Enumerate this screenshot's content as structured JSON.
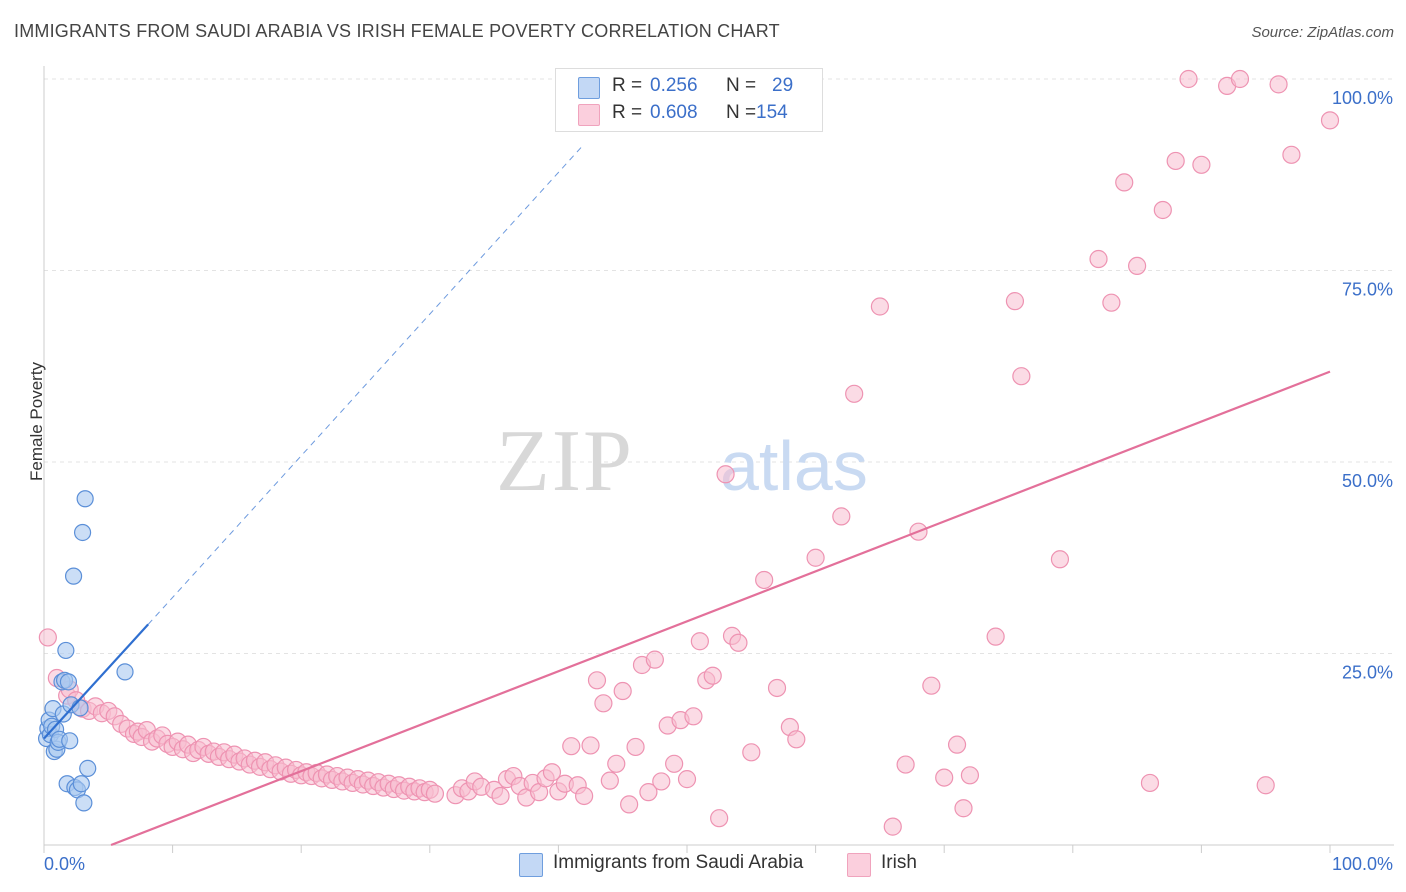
{
  "title": "IMMIGRANTS FROM SAUDI ARABIA VS IRISH FEMALE POVERTY CORRELATION CHART",
  "source": "Source: ZipAtlas.com",
  "watermark": {
    "zip": "ZIP",
    "atlas": "atlas"
  },
  "legend": [
    {
      "r_label": "R =",
      "r_value": "0.256",
      "n_label": "N =",
      "n_value": "29"
    },
    {
      "r_label": "R =",
      "r_value": "0.608",
      "n_label": "N =",
      "n_value": "154"
    }
  ],
  "colors": {
    "saudi_fill": "#a9c8f0",
    "saudi_stroke": "#5b8fd8",
    "saudi_line": "#2f6fd0",
    "irish_fill": "#f8bed0",
    "irish_stroke": "#ee93b2",
    "irish_line": "#e3709a",
    "axis_text": "#3b6fc9",
    "grid": "#e3e3e3"
  },
  "chart_data": {
    "type": "scatter",
    "title": "IMMIGRANTS FROM SAUDI ARABIA VS IRISH FEMALE POVERTY CORRELATION CHART",
    "xlabel": "",
    "ylabel": "Female Poverty",
    "xlim": [
      0,
      100
    ],
    "ylim": [
      0,
      100
    ],
    "x_tick_labels": [
      "0.0%",
      "100.0%"
    ],
    "y_ticks": [
      25,
      50,
      75,
      100
    ],
    "y_tick_labels": [
      "25.0%",
      "50.0%",
      "75.0%",
      "100.0%"
    ],
    "grid": true,
    "legend_position": "bottom",
    "series": [
      {
        "name": "Immigrants from Saudi Arabia",
        "r": 0.256,
        "n": 29,
        "points": [
          [
            0.2,
            13.9
          ],
          [
            0.3,
            15.2
          ],
          [
            0.4,
            16.3
          ],
          [
            0.5,
            14.4
          ],
          [
            0.6,
            15.5
          ],
          [
            0.7,
            17.8
          ],
          [
            0.8,
            12.2
          ],
          [
            0.9,
            15.1
          ],
          [
            1.0,
            12.5
          ],
          [
            1.1,
            13.4
          ],
          [
            1.2,
            13.8
          ],
          [
            1.4,
            21.3
          ],
          [
            1.5,
            17.1
          ],
          [
            1.6,
            21.5
          ],
          [
            1.7,
            25.4
          ],
          [
            1.8,
            8.0
          ],
          [
            1.9,
            21.3
          ],
          [
            2.1,
            18.3
          ],
          [
            2.3,
            35.1
          ],
          [
            2.4,
            7.5
          ],
          [
            2.6,
            7.2
          ],
          [
            2.8,
            17.9
          ],
          [
            2.9,
            8.0
          ],
          [
            3.0,
            40.8
          ],
          [
            3.1,
            5.5
          ],
          [
            3.2,
            45.2
          ],
          [
            3.4,
            10.0
          ],
          [
            6.3,
            22.6
          ],
          [
            2.0,
            13.6
          ]
        ],
        "trend_solid": {
          "x": [
            0,
            8.1
          ],
          "y": [
            13.9,
            28.8
          ]
        },
        "trend_dashed": {
          "x": [
            8.1,
            42.0
          ],
          "y": [
            28.8,
            91.5
          ]
        }
      },
      {
        "name": "Irish",
        "r": 0.608,
        "n": 154,
        "points": [
          [
            0.3,
            27.1
          ],
          [
            1.0,
            21.8
          ],
          [
            1.8,
            19.5
          ],
          [
            2.0,
            20.3
          ],
          [
            2.5,
            18.9
          ],
          [
            3.0,
            17.8
          ],
          [
            3.5,
            17.5
          ],
          [
            4.0,
            18.1
          ],
          [
            4.5,
            17.2
          ],
          [
            5.0,
            17.5
          ],
          [
            5.5,
            16.8
          ],
          [
            6.0,
            15.8
          ],
          [
            6.5,
            15.2
          ],
          [
            7.0,
            14.5
          ],
          [
            7.3,
            14.8
          ],
          [
            7.6,
            14.1
          ],
          [
            8.0,
            15.0
          ],
          [
            8.4,
            13.5
          ],
          [
            8.8,
            13.9
          ],
          [
            9.2,
            14.3
          ],
          [
            9.6,
            13.2
          ],
          [
            10.0,
            12.8
          ],
          [
            10.4,
            13.5
          ],
          [
            10.8,
            12.5
          ],
          [
            11.2,
            13.1
          ],
          [
            11.6,
            12.0
          ],
          [
            12.0,
            12.4
          ],
          [
            12.4,
            12.8
          ],
          [
            12.8,
            11.9
          ],
          [
            13.2,
            12.2
          ],
          [
            13.6,
            11.5
          ],
          [
            14.0,
            12.1
          ],
          [
            14.4,
            11.2
          ],
          [
            14.8,
            11.8
          ],
          [
            15.2,
            10.9
          ],
          [
            15.6,
            11.3
          ],
          [
            16.0,
            10.5
          ],
          [
            16.4,
            11.0
          ],
          [
            16.8,
            10.2
          ],
          [
            17.2,
            10.8
          ],
          [
            17.6,
            9.9
          ],
          [
            18.0,
            10.4
          ],
          [
            18.4,
            9.6
          ],
          [
            18.8,
            10.1
          ],
          [
            19.2,
            9.3
          ],
          [
            19.6,
            9.8
          ],
          [
            20.0,
            9.1
          ],
          [
            20.4,
            9.5
          ],
          [
            20.8,
            9.0
          ],
          [
            21.2,
            9.4
          ],
          [
            21.6,
            8.7
          ],
          [
            22.0,
            9.2
          ],
          [
            22.4,
            8.5
          ],
          [
            22.8,
            9.0
          ],
          [
            23.2,
            8.3
          ],
          [
            23.6,
            8.8
          ],
          [
            24.0,
            8.1
          ],
          [
            24.4,
            8.6
          ],
          [
            24.8,
            7.9
          ],
          [
            25.2,
            8.4
          ],
          [
            25.6,
            7.7
          ],
          [
            26.0,
            8.2
          ],
          [
            26.4,
            7.5
          ],
          [
            26.8,
            8.0
          ],
          [
            27.2,
            7.3
          ],
          [
            27.6,
            7.8
          ],
          [
            28.0,
            7.1
          ],
          [
            28.4,
            7.6
          ],
          [
            28.8,
            7.0
          ],
          [
            29.2,
            7.4
          ],
          [
            29.6,
            6.9
          ],
          [
            30.0,
            7.2
          ],
          [
            30.4,
            6.7
          ],
          [
            32.0,
            6.5
          ],
          [
            32.5,
            7.4
          ],
          [
            33.0,
            7.0
          ],
          [
            33.5,
            8.3
          ],
          [
            34.0,
            7.6
          ],
          [
            35.0,
            7.2
          ],
          [
            35.5,
            6.4
          ],
          [
            36.0,
            8.6
          ],
          [
            36.5,
            9.0
          ],
          [
            37.0,
            7.7
          ],
          [
            37.5,
            6.2
          ],
          [
            38.0,
            8.1
          ],
          [
            38.5,
            6.9
          ],
          [
            39.0,
            8.7
          ],
          [
            39.5,
            9.5
          ],
          [
            40.0,
            7.0
          ],
          [
            40.5,
            8.0
          ],
          [
            41.0,
            12.9
          ],
          [
            41.5,
            7.8
          ],
          [
            42.0,
            6.4
          ],
          [
            42.5,
            13.0
          ],
          [
            43.0,
            21.5
          ],
          [
            43.5,
            18.5
          ],
          [
            44.0,
            8.4
          ],
          [
            44.5,
            10.6
          ],
          [
            45.0,
            20.1
          ],
          [
            45.5,
            5.3
          ],
          [
            46.0,
            12.8
          ],
          [
            46.5,
            23.5
          ],
          [
            47.0,
            6.9
          ],
          [
            47.5,
            24.2
          ],
          [
            48.0,
            8.3
          ],
          [
            48.5,
            15.6
          ],
          [
            49.0,
            10.6
          ],
          [
            49.5,
            16.3
          ],
          [
            50.0,
            8.6
          ],
          [
            50.5,
            16.8
          ],
          [
            51.0,
            26.6
          ],
          [
            51.5,
            21.5
          ],
          [
            52.0,
            22.1
          ],
          [
            52.5,
            3.5
          ],
          [
            53.0,
            48.4
          ],
          [
            53.5,
            27.3
          ],
          [
            54.0,
            26.4
          ],
          [
            55.0,
            12.1
          ],
          [
            56.0,
            34.6
          ],
          [
            57.0,
            20.5
          ],
          [
            58.0,
            15.4
          ],
          [
            58.5,
            13.8
          ],
          [
            60.0,
            37.5
          ],
          [
            62.0,
            42.9
          ],
          [
            63.0,
            58.9
          ],
          [
            65.0,
            70.3
          ],
          [
            66.0,
            2.4
          ],
          [
            67.0,
            10.5
          ],
          [
            68.0,
            40.9
          ],
          [
            69.0,
            20.8
          ],
          [
            70.0,
            8.8
          ],
          [
            71.0,
            13.1
          ],
          [
            71.5,
            4.8
          ],
          [
            72.0,
            9.1
          ],
          [
            74.0,
            27.2
          ],
          [
            75.5,
            71.0
          ],
          [
            76.0,
            61.2
          ],
          [
            79.0,
            37.3
          ],
          [
            82.0,
            76.5
          ],
          [
            83.0,
            70.8
          ],
          [
            84.0,
            86.5
          ],
          [
            85.0,
            75.6
          ],
          [
            86.0,
            8.1
          ],
          [
            87.0,
            82.9
          ],
          [
            88.0,
            89.3
          ],
          [
            89.0,
            100.0
          ],
          [
            90.0,
            88.8
          ],
          [
            92.0,
            99.1
          ],
          [
            93.0,
            100.0
          ],
          [
            95.0,
            7.8
          ],
          [
            96.0,
            99.3
          ],
          [
            97.0,
            90.1
          ],
          [
            100.0,
            94.6
          ]
        ],
        "trend": {
          "x": [
            0,
            100
          ],
          "y": [
            -3.4,
            61.8
          ]
        }
      }
    ]
  },
  "bottom_legend": [
    {
      "label": "Immigrants from Saudi Arabia"
    },
    {
      "label": "Irish"
    }
  ]
}
